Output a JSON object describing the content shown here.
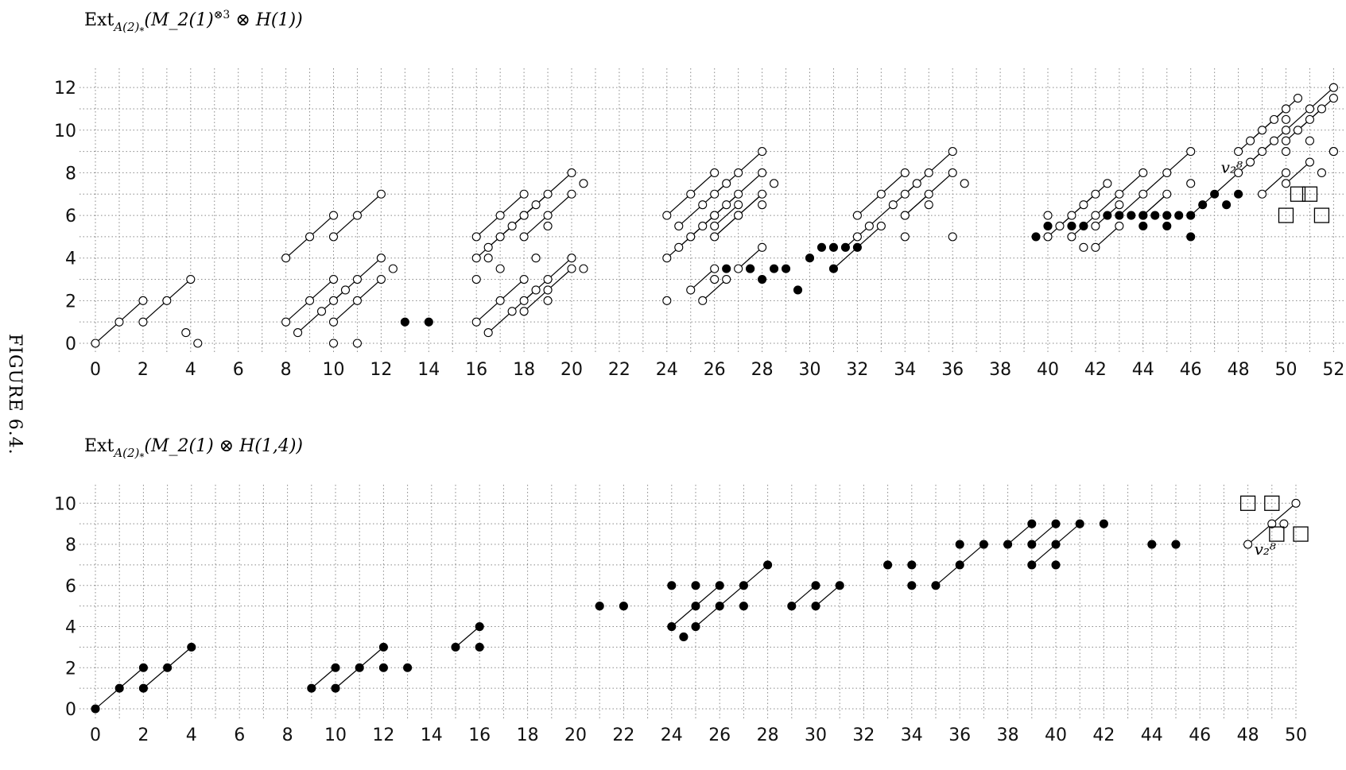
{
  "figure_caption": "FIGURE 6.4.",
  "chart_data": [
    {
      "type": "scatter",
      "title": "Ext_{A(2)_*}(M_2(1)^{⊗3} ⊗ H(1))",
      "x_ticks": [
        0,
        2,
        4,
        6,
        8,
        10,
        12,
        14,
        16,
        18,
        20,
        22,
        24,
        26,
        28,
        30,
        32,
        34,
        36,
        38,
        40,
        42,
        44,
        46,
        48,
        50,
        52
      ],
      "y_ticks": [
        0,
        2,
        4,
        6,
        8,
        10,
        12
      ],
      "xlim": [
        0,
        52
      ],
      "ylim": [
        0,
        12
      ],
      "grid": true,
      "open_dots": [
        [
          0,
          0
        ],
        [
          1,
          1
        ],
        [
          2,
          2
        ],
        [
          2,
          1
        ],
        [
          3,
          2
        ],
        [
          4,
          3
        ],
        [
          3.8,
          0.5
        ],
        [
          4.3,
          0
        ],
        [
          8,
          4
        ],
        [
          9,
          5
        ],
        [
          10,
          6
        ],
        [
          10,
          5
        ],
        [
          11,
          6
        ],
        [
          12,
          7
        ],
        [
          8,
          1
        ],
        [
          9,
          2
        ],
        [
          10,
          3
        ],
        [
          10,
          2
        ],
        [
          11,
          3
        ],
        [
          12,
          4
        ],
        [
          8.5,
          0.5
        ],
        [
          9.5,
          1.5
        ],
        [
          10,
          1
        ],
        [
          10.5,
          2.5
        ],
        [
          11,
          2
        ],
        [
          12,
          3
        ],
        [
          12.5,
          3.5
        ],
        [
          10,
          0
        ],
        [
          11,
          0
        ],
        [
          16,
          5
        ],
        [
          17,
          6
        ],
        [
          18,
          7
        ],
        [
          18,
          6
        ],
        [
          19,
          7
        ],
        [
          20,
          8
        ],
        [
          16.5,
          4.5
        ],
        [
          17.5,
          5.5
        ],
        [
          18.5,
          6.5
        ],
        [
          18,
          5
        ],
        [
          19,
          6
        ],
        [
          20,
          7
        ],
        [
          19,
          5.5
        ],
        [
          20.5,
          7.5
        ],
        [
          16,
          4
        ],
        [
          17,
          5
        ],
        [
          16.5,
          4
        ],
        [
          18,
          6
        ],
        [
          16,
          1
        ],
        [
          17,
          2
        ],
        [
          18,
          3
        ],
        [
          18,
          2
        ],
        [
          19,
          3
        ],
        [
          20,
          4
        ],
        [
          16.5,
          0.5
        ],
        [
          17.5,
          1.5
        ],
        [
          18.5,
          2.5
        ],
        [
          18,
          1.5
        ],
        [
          19,
          2.5
        ],
        [
          20,
          3.5
        ],
        [
          19,
          2
        ],
        [
          20.5,
          3.5
        ],
        [
          16,
          3
        ],
        [
          17,
          3.5
        ],
        [
          18.5,
          4
        ],
        [
          24,
          6
        ],
        [
          25,
          7
        ],
        [
          26,
          8
        ],
        [
          26,
          7
        ],
        [
          27,
          8
        ],
        [
          28,
          9
        ],
        [
          24.5,
          5.5
        ],
        [
          25.5,
          6.5
        ],
        [
          26.5,
          7.5
        ],
        [
          26,
          6
        ],
        [
          27,
          7
        ],
        [
          28,
          8
        ],
        [
          27,
          6.5
        ],
        [
          28.5,
          7.5
        ],
        [
          24,
          4
        ],
        [
          25,
          5
        ],
        [
          26,
          6
        ],
        [
          26,
          5
        ],
        [
          27,
          6
        ],
        [
          28,
          7
        ],
        [
          24.5,
          4.5
        ],
        [
          25.5,
          5.5
        ],
        [
          26.5,
          6.5
        ],
        [
          26,
          5.5
        ],
        [
          27,
          6
        ],
        [
          28,
          6.5
        ],
        [
          24,
          2
        ],
        [
          25,
          2.5
        ],
        [
          26,
          3.5
        ],
        [
          26,
          3
        ],
        [
          27,
          3.5
        ],
        [
          28,
          4.5
        ],
        [
          25.5,
          2
        ],
        [
          26.5,
          3
        ],
        [
          27.5,
          3.5
        ],
        [
          32,
          6
        ],
        [
          33,
          7
        ],
        [
          34,
          8
        ],
        [
          34,
          7
        ],
        [
          35,
          8
        ],
        [
          36,
          9
        ],
        [
          32.5,
          5.5
        ],
        [
          33.5,
          6.5
        ],
        [
          34.5,
          7.5
        ],
        [
          34,
          6
        ],
        [
          35,
          7
        ],
        [
          36,
          8
        ],
        [
          35,
          6.5
        ],
        [
          36.5,
          7.5
        ],
        [
          32,
          5
        ],
        [
          33,
          5.5
        ],
        [
          34,
          6
        ],
        [
          34,
          5
        ],
        [
          36,
          5
        ],
        [
          40,
          5
        ],
        [
          41,
          6
        ],
        [
          42,
          7
        ],
        [
          42,
          6
        ],
        [
          43,
          7
        ],
        [
          44,
          8
        ],
        [
          40.5,
          5.5
        ],
        [
          41.5,
          6.5
        ],
        [
          42.5,
          7.5
        ],
        [
          42,
          5.5
        ],
        [
          43,
          6.5
        ],
        [
          44,
          7
        ],
        [
          45,
          8
        ],
        [
          46,
          9
        ],
        [
          45,
          7
        ],
        [
          46,
          7.5
        ],
        [
          40,
          6
        ],
        [
          41,
          5
        ],
        [
          41.5,
          4.5
        ],
        [
          42,
          4.5
        ],
        [
          43,
          5.5
        ],
        [
          44,
          6
        ],
        [
          48,
          9
        ],
        [
          49,
          10
        ],
        [
          50,
          11
        ],
        [
          50,
          10
        ],
        [
          51,
          11
        ],
        [
          52,
          12
        ],
        [
          48.5,
          9.5
        ],
        [
          49.5,
          10.5
        ],
        [
          50.5,
          11.5
        ],
        [
          50,
          9.5
        ],
        [
          51,
          10.5
        ],
        [
          52,
          11.5
        ],
        [
          50.5,
          10
        ],
        [
          51.5,
          11
        ],
        [
          48,
          8
        ],
        [
          49,
          9
        ],
        [
          50,
          10.5
        ],
        [
          50,
          9
        ],
        [
          51,
          9.5
        ],
        [
          52,
          9
        ],
        [
          48.5,
          8.5
        ],
        [
          49.5,
          9.5
        ],
        [
          49,
          7
        ],
        [
          50,
          7.5
        ],
        [
          50,
          8
        ],
        [
          51,
          8.5
        ],
        [
          52,
          9
        ],
        [
          51.5,
          8
        ]
      ],
      "filled_dots": [
        [
          13,
          1
        ],
        [
          14,
          1
        ],
        [
          26.5,
          3.5
        ],
        [
          27.5,
          3.5
        ],
        [
          28,
          3
        ],
        [
          28.5,
          3.5
        ],
        [
          29,
          3.5
        ],
        [
          29.5,
          2.5
        ],
        [
          30,
          4
        ],
        [
          30.5,
          4.5
        ],
        [
          31,
          4.5
        ],
        [
          31.5,
          4.5
        ],
        [
          32,
          4.5
        ],
        [
          31,
          3.5
        ],
        [
          39.5,
          5
        ],
        [
          40,
          5.5
        ],
        [
          41,
          5.5
        ],
        [
          41.5,
          5.5
        ],
        [
          42.5,
          6
        ],
        [
          43,
          6
        ],
        [
          43.5,
          6
        ],
        [
          44,
          6
        ],
        [
          44.5,
          6
        ],
        [
          45,
          6
        ],
        [
          45.5,
          6
        ],
        [
          46,
          6
        ],
        [
          46.5,
          6.5
        ],
        [
          47,
          7
        ],
        [
          46,
          5
        ],
        [
          45,
          5.5
        ],
        [
          44,
          5.5
        ],
        [
          47.5,
          6.5
        ],
        [
          48,
          7
        ]
      ],
      "boxes": [
        [
          50,
          6
        ],
        [
          50.5,
          7
        ],
        [
          51,
          7
        ],
        [
          51.5,
          6
        ]
      ],
      "annotation": {
        "text": "v₂⁸",
        "x": 47,
        "y": 8
      }
    },
    {
      "type": "scatter",
      "title": "Ext_{A(2)_*}(M_2(1) ⊗ H(1,4))",
      "x_ticks": [
        0,
        2,
        4,
        6,
        8,
        10,
        12,
        14,
        16,
        18,
        20,
        22,
        24,
        26,
        28,
        30,
        32,
        34,
        36,
        38,
        40,
        42,
        44,
        46,
        48,
        50
      ],
      "y_ticks": [
        0,
        2,
        4,
        6,
        8,
        10
      ],
      "xlim": [
        0,
        50
      ],
      "ylim": [
        0,
        10
      ],
      "grid": true,
      "open_dots": [
        [
          48,
          8
        ],
        [
          49,
          9
        ],
        [
          50,
          10
        ],
        [
          49.5,
          9
        ]
      ],
      "filled_dots": [
        [
          0,
          0
        ],
        [
          1,
          1
        ],
        [
          2,
          2
        ],
        [
          2,
          1
        ],
        [
          3,
          2
        ],
        [
          4,
          3
        ],
        [
          9,
          1
        ],
        [
          10,
          2
        ],
        [
          10,
          1
        ],
        [
          11,
          2
        ],
        [
          12,
          3
        ],
        [
          12,
          2
        ],
        [
          13,
          2
        ],
        [
          15,
          3
        ],
        [
          16,
          4
        ],
        [
          16,
          3
        ],
        [
          21,
          5
        ],
        [
          22,
          5
        ],
        [
          24,
          6
        ],
        [
          25,
          6
        ],
        [
          25,
          5
        ],
        [
          26,
          6
        ],
        [
          26,
          5
        ],
        [
          27,
          6
        ],
        [
          27,
          5
        ],
        [
          28,
          7
        ],
        [
          29,
          5
        ],
        [
          30,
          6
        ],
        [
          30,
          5
        ],
        [
          31,
          6
        ],
        [
          24,
          4
        ],
        [
          24.5,
          3.5
        ],
        [
          25,
          4
        ],
        [
          33,
          7
        ],
        [
          34,
          7
        ],
        [
          36,
          8
        ],
        [
          37,
          8
        ],
        [
          38,
          8
        ],
        [
          39,
          9
        ],
        [
          39,
          8
        ],
        [
          40,
          9
        ],
        [
          40,
          8
        ],
        [
          41,
          9
        ],
        [
          42,
          9
        ],
        [
          34,
          6
        ],
        [
          35,
          6
        ],
        [
          36,
          7
        ],
        [
          39,
          7
        ],
        [
          40,
          7
        ],
        [
          44,
          8
        ],
        [
          45,
          8
        ]
      ],
      "boxes": [
        [
          48,
          10
        ],
        [
          49,
          10
        ],
        [
          49.2,
          8.5
        ],
        [
          50.2,
          8.5
        ]
      ],
      "annotation": {
        "text": "v₂⁸",
        "x": 48,
        "y": 7.5
      }
    }
  ]
}
